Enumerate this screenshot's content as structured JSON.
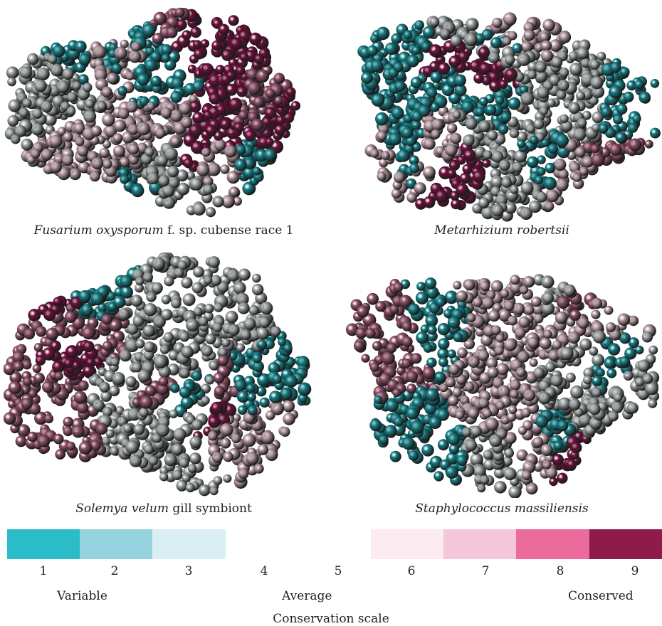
{
  "panels": [
    {
      "species_italic": "Fusarium oxysporum",
      "species_rest": " f. sp. cubense race 1"
    },
    {
      "species_italic": "Metarhizium robertsii",
      "species_rest": ""
    },
    {
      "species_italic": "Solemya velum",
      "species_rest": " gill symbiont"
    },
    {
      "species_italic": "Staphylococcus massiliensis",
      "species_rest": ""
    }
  ],
  "scale": {
    "title": "Conservation scale",
    "low_label": "Variable",
    "mid_label": "Average",
    "high_label": "Conserved",
    "grades": [
      {
        "label": "1",
        "color": "#2bbcc9"
      },
      {
        "label": "2",
        "color": "#93d4de"
      },
      {
        "label": "3",
        "color": "#d9eff3"
      },
      {
        "label": "4",
        "color": "#ffffff"
      },
      {
        "label": "5",
        "color": "#ffffff"
      },
      {
        "label": "6",
        "color": "#fcecf2"
      },
      {
        "label": "7",
        "color": "#f5c7da"
      },
      {
        "label": "8",
        "color": "#ec6b9d"
      },
      {
        "label": "9",
        "color": "#8e1b4b"
      }
    ]
  },
  "render_colors": {
    "teal": "#127f86",
    "gray": "#9ea3a3",
    "mauve": "#b79aa3",
    "rose": "#8f4f68",
    "maroon": "#6e0f3b"
  }
}
